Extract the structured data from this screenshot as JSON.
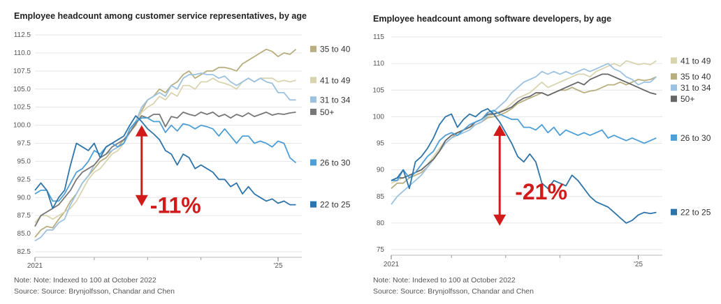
{
  "chart_data": [
    {
      "type": "line",
      "title": "Employee headcount among customer service representatives, by age",
      "note": "Note: Note: Indexed to 100 at October 2022",
      "source": "Source: Source: Brynjolfsson, Chandar and Chen",
      "ylim": [
        82.5,
        112.5
      ],
      "yticks": [
        "112.5",
        "110.0",
        "107.5",
        "105.0",
        "102.5",
        "100.0",
        "97.5",
        "95.0",
        "92.5",
        "90.0",
        "87.5",
        "85.0",
        "82.5"
      ],
      "ytick_values": [
        112.5,
        110,
        107.5,
        105,
        102.5,
        100,
        97.5,
        95,
        92.5,
        90,
        87.5,
        85,
        82.5
      ],
      "xlim": [
        0,
        45
      ],
      "xticks": [
        {
          "label": "2021",
          "x": 0
        },
        {
          "label": "'25",
          "x": 41
        }
      ],
      "minor_xticks": [
        10,
        19,
        28
      ],
      "annotation": {
        "label": "-11%",
        "x": 18,
        "y_top": 100.0,
        "y_bottom": 88.8,
        "label_y": 89.0
      },
      "series": [
        {
          "name": "35 to 40",
          "color": "#b8ae7f",
          "values": [
            84.5,
            85.5,
            86.0,
            85.8,
            87.0,
            88.0,
            89.5,
            90.5,
            92.0,
            93.0,
            94.0,
            95.0,
            95.5,
            96.5,
            97.0,
            98.0,
            99.0,
            100.0,
            102.0,
            103.5,
            104.0,
            105.0,
            104.5,
            105.5,
            106.0,
            107.0,
            107.5,
            106.5,
            107.0,
            107.5,
            107.5,
            108.0,
            108.0,
            107.8,
            107.5,
            108.5,
            109.0,
            109.5,
            110.0,
            110.5,
            110.2,
            109.5,
            110.0,
            109.8,
            110.5
          ]
        },
        {
          "name": "41 to 49",
          "color": "#d9d4b0",
          "values": [
            86.5,
            87.5,
            87.5,
            87.0,
            87.5,
            88.0,
            88.5,
            89.5,
            91.0,
            92.5,
            93.5,
            94.0,
            95.0,
            96.0,
            96.5,
            97.5,
            99.0,
            100.2,
            101.8,
            102.5,
            103.0,
            104.0,
            103.5,
            104.5,
            104.0,
            105.5,
            105.5,
            105.0,
            106.0,
            106.0,
            106.5,
            106.0,
            105.8,
            105.5,
            105.0,
            106.0,
            106.5,
            106.0,
            106.5,
            106.5,
            106.5,
            106.0,
            106.2,
            106.0,
            106.2
          ]
        },
        {
          "name": "31 to 34",
          "color": "#9cc2e0",
          "values": [
            84.0,
            84.5,
            85.5,
            85.5,
            86.5,
            87.0,
            89.0,
            90.5,
            92.0,
            93.0,
            94.5,
            95.5,
            96.0,
            96.5,
            97.0,
            97.5,
            99.0,
            100.5,
            102.5,
            103.5,
            104.0,
            104.5,
            104.0,
            105.5,
            105.0,
            106.5,
            107.0,
            107.0,
            107.2,
            107.0,
            107.0,
            106.5,
            106.8,
            106.0,
            105.5,
            106.0,
            106.5,
            106.0,
            106.5,
            106.0,
            105.8,
            104.5,
            104.5,
            103.5,
            103.5
          ]
        },
        {
          "name": "50+",
          "color": "#777777",
          "values": [
            86.0,
            87.5,
            88.0,
            88.5,
            89.0,
            90.0,
            91.0,
            92.5,
            93.5,
            94.0,
            94.5,
            95.5,
            96.0,
            97.0,
            97.5,
            98.0,
            99.0,
            100.2,
            101.3,
            101.0,
            101.5,
            101.5,
            99.8,
            101.2,
            101.0,
            101.8,
            101.5,
            101.3,
            101.8,
            101.5,
            101.8,
            101.2,
            101.5,
            101.0,
            101.5,
            101.2,
            101.7,
            101.2,
            101.5,
            101.8,
            101.4,
            101.6,
            101.5,
            101.7,
            101.8
          ]
        },
        {
          "name": "26 to 30",
          "color": "#4d9fd6",
          "values": [
            90.5,
            91.0,
            91.0,
            89.5,
            89.5,
            90.5,
            92.0,
            93.5,
            94.0,
            95.0,
            96.5,
            96.0,
            97.0,
            97.5,
            97.0,
            97.5,
            99.5,
            100.5,
            101.0,
            101.0,
            100.5,
            100.5,
            99.0,
            100.0,
            99.2,
            100.2,
            100.0,
            99.5,
            100.0,
            99.8,
            99.5,
            98.5,
            99.5,
            98.5,
            97.5,
            98.5,
            98.5,
            97.5,
            97.8,
            97.5,
            97.0,
            97.8,
            97.5,
            95.5,
            94.8
          ]
        },
        {
          "name": "22 to 25",
          "color": "#2e74a8",
          "values": [
            91.0,
            92.0,
            91.0,
            88.5,
            90.0,
            91.0,
            94.5,
            97.5,
            97.0,
            96.5,
            97.5,
            95.5,
            97.0,
            97.5,
            98.0,
            98.5,
            100.0,
            101.3,
            100.5,
            99.5,
            98.8,
            98.0,
            96.5,
            96.0,
            94.5,
            96.0,
            95.5,
            94.0,
            94.5,
            94.0,
            93.5,
            92.5,
            92.5,
            91.5,
            92.0,
            90.5,
            91.5,
            90.5,
            90.0,
            89.5,
            89.8,
            89.2,
            89.5,
            89.0,
            89.0
          ]
        }
      ]
    },
    {
      "type": "line",
      "title": "Employee headcount among software developers, by age",
      "note": "Note: Note: Indexed to 100 at October 2022",
      "source": "Source: Source: Brynjolfsson, Chandar and Chen",
      "ylim": [
        75,
        115
      ],
      "yticks": [
        "115",
        "110",
        "105",
        "100",
        "95",
        "90",
        "85",
        "80",
        "75"
      ],
      "ytick_values": [
        115,
        110,
        105,
        100,
        95,
        90,
        85,
        80,
        75
      ],
      "xlim": [
        0,
        45
      ],
      "xticks": [
        {
          "label": "2021",
          "x": 0
        },
        {
          "label": "'25",
          "x": 41
        }
      ],
      "minor_xticks": [
        10,
        19,
        28
      ],
      "annotation": {
        "label": "-21%",
        "x": 18,
        "y_top": 98.5,
        "y_bottom": 79.5,
        "label_y": 86.0
      },
      "series": [
        {
          "name": "41 to 49",
          "color": "#d9d4b0",
          "values": [
            87.5,
            88.0,
            88.5,
            89.0,
            89.5,
            90.0,
            91.0,
            92.5,
            94.0,
            95.5,
            96.5,
            97.0,
            97.5,
            98.0,
            98.5,
            99.0,
            100.0,
            100.5,
            101.0,
            101.5,
            102.5,
            103.5,
            104.0,
            104.5,
            105.5,
            106.5,
            105.5,
            106.0,
            106.5,
            107.0,
            107.5,
            108.0,
            108.0,
            107.5,
            108.5,
            109.0,
            109.5,
            110.0,
            109.5,
            110.5,
            110.2,
            109.8,
            110.0,
            109.8,
            110.5
          ]
        },
        {
          "name": "35 to 40",
          "color": "#b8ae7f",
          "values": [
            86.5,
            87.5,
            87.5,
            88.5,
            89.0,
            89.5,
            90.5,
            92.0,
            93.5,
            95.0,
            96.0,
            97.0,
            97.5,
            98.0,
            98.5,
            99.0,
            99.8,
            100.0,
            100.3,
            100.8,
            101.5,
            102.5,
            103.0,
            103.5,
            104.0,
            104.5,
            104.0,
            104.5,
            105.0,
            105.0,
            105.5,
            105.0,
            104.5,
            104.8,
            105.0,
            105.5,
            106.0,
            106.0,
            106.5,
            106.0,
            106.5,
            107.0,
            106.8,
            107.0,
            107.5
          ]
        },
        {
          "name": "31 to 34",
          "color": "#9cc2e0",
          "values": [
            83.5,
            85.0,
            86.0,
            87.0,
            88.0,
            89.0,
            90.5,
            92.0,
            93.5,
            95.0,
            96.0,
            96.5,
            97.0,
            97.5,
            98.5,
            99.0,
            100.2,
            101.0,
            102.0,
            103.0,
            104.5,
            105.5,
            106.5,
            107.0,
            107.5,
            108.5,
            108.0,
            108.5,
            108.0,
            108.5,
            108.0,
            108.5,
            109.0,
            108.5,
            109.0,
            109.5,
            110.0,
            109.0,
            108.5,
            107.5,
            107.0,
            106.0,
            106.5,
            106.5,
            107.5
          ]
        },
        {
          "name": "50+",
          "color": "#666666",
          "values": [
            88.0,
            88.5,
            88.5,
            89.0,
            89.5,
            90.0,
            91.0,
            92.0,
            93.5,
            95.5,
            96.5,
            97.0,
            97.5,
            98.0,
            99.0,
            99.5,
            100.5,
            100.5,
            100.8,
            101.3,
            101.8,
            102.8,
            103.5,
            103.8,
            104.5,
            104.5,
            104.0,
            104.5,
            105.0,
            105.5,
            106.0,
            106.5,
            106.0,
            107.0,
            107.5,
            108.0,
            108.0,
            107.5,
            107.0,
            106.5,
            106.0,
            105.5,
            105.0,
            104.5,
            104.2
          ]
        },
        {
          "name": "26 to 30",
          "color": "#4d9fd6",
          "values": [
            88.0,
            88.0,
            90.0,
            88.5,
            89.5,
            91.0,
            92.5,
            93.5,
            95.5,
            96.5,
            97.0,
            96.5,
            97.5,
            98.5,
            99.0,
            99.5,
            100.8,
            101.2,
            100.5,
            100.0,
            99.5,
            99.5,
            98.0,
            98.0,
            97.5,
            98.5,
            97.0,
            98.0,
            96.5,
            97.5,
            97.0,
            96.5,
            97.0,
            96.5,
            97.0,
            97.5,
            96.0,
            96.5,
            96.0,
            95.5,
            96.0,
            95.5,
            95.0,
            95.5,
            96.0
          ]
        },
        {
          "name": "22 to 25",
          "color": "#2e74a8",
          "values": [
            88.0,
            88.5,
            90.0,
            86.5,
            91.5,
            92.5,
            94.0,
            96.0,
            98.5,
            100.0,
            100.5,
            98.0,
            99.5,
            100.5,
            100.0,
            101.0,
            101.5,
            100.5,
            99.0,
            97.0,
            95.0,
            92.5,
            91.5,
            93.0,
            91.5,
            87.5,
            86.5,
            88.0,
            87.5,
            87.0,
            89.0,
            88.0,
            86.5,
            85.0,
            84.0,
            83.5,
            83.0,
            82.0,
            81.0,
            80.0,
            80.5,
            81.5,
            82.0,
            81.8,
            82.0
          ]
        }
      ]
    }
  ]
}
